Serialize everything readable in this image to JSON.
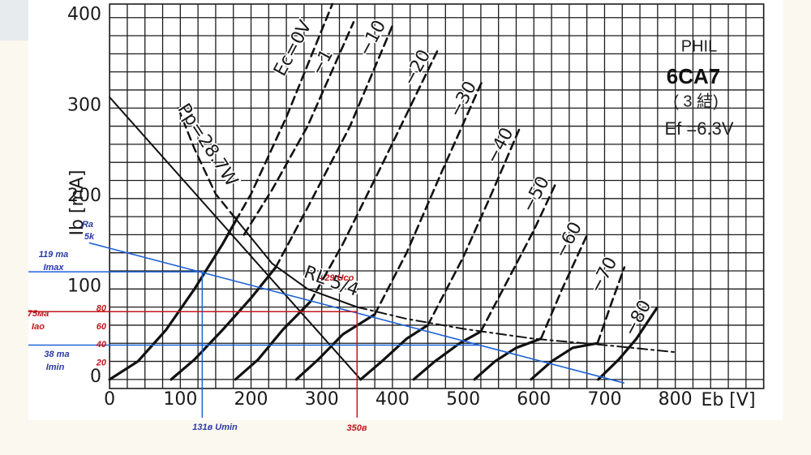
{
  "chart_data": {
    "type": "line",
    "xlabel": "Eb [V]",
    "ylabel": "Ib [mA]",
    "header": [
      "PHIL",
      "6CA7",
      "( 3 結)",
      "Ef =6.3V"
    ],
    "xlim": [
      -30,
      930
    ],
    "ylim": [
      -10,
      415
    ],
    "xticks": [
      0,
      100,
      200,
      300,
      400,
      500,
      600,
      700,
      800
    ],
    "yticks": [
      0,
      100,
      200,
      300,
      400
    ],
    "xminor": [
      0,
      25,
      50,
      75,
      100,
      125,
      150,
      175,
      200,
      225,
      250,
      275,
      300,
      325,
      350,
      375,
      400,
      425,
      450,
      475,
      500,
      525,
      550,
      575,
      600,
      625,
      650,
      675,
      700,
      725,
      750,
      775,
      800,
      825,
      850,
      875,
      900,
      925
    ],
    "yminor": [
      0,
      20,
      40,
      60,
      80,
      100,
      120,
      140,
      160,
      180,
      200,
      220,
      240,
      260,
      280,
      300,
      320,
      340,
      360,
      380,
      400
    ],
    "grid": true,
    "series": [
      {
        "color": "#111111",
        "style": "solid",
        "width": 3.2,
        "x": [
          0,
          40,
          80,
          120,
          160,
          178
        ],
        "values": [
          0,
          20,
          55,
          100,
          150,
          175
        ]
      },
      {
        "name": "Ec=0V",
        "color": "#111111",
        "style": "dashed",
        "width": 2.6,
        "x": [
          178,
          200,
          250,
          315
        ],
        "values": [
          175,
          205,
          290,
          415
        ]
      },
      {
        "name": "−1",
        "color": "#111111",
        "style": "dashed",
        "width": 2.6,
        "x": [
          190,
          230,
          280,
          345
        ],
        "values": [
          160,
          210,
          280,
          395
        ]
      },
      {
        "color": "#111111",
        "style": "solid",
        "width": 3.2,
        "x": [
          87,
          120,
          160,
          200,
          235
        ],
        "values": [
          0,
          22,
          55,
          90,
          124
        ]
      },
      {
        "name": "−10",
        "color": "#111111",
        "style": "dashed",
        "width": 2.6,
        "x": [
          235,
          280,
          340,
          401
        ],
        "values": [
          124,
          190,
          280,
          393
        ]
      },
      {
        "color": "#111111",
        "style": "solid",
        "width": 3.2,
        "x": [
          178,
          210,
          245,
          284
        ],
        "values": [
          0,
          22,
          55,
          86
        ]
      },
      {
        "name": "−20",
        "color": "#111111",
        "style": "dashed",
        "width": 2.6,
        "x": [
          284,
          330,
          390,
          464
        ],
        "values": [
          86,
          150,
          245,
          364
        ]
      },
      {
        "color": "#111111",
        "style": "solid",
        "width": 3.2,
        "x": [
          264,
          295,
          330,
          375
        ],
        "values": [
          0,
          22,
          50,
          72
        ]
      },
      {
        "name": "−30",
        "color": "#111111",
        "style": "dashed",
        "width": 2.6,
        "x": [
          375,
          420,
          470,
          527
        ],
        "values": [
          72,
          140,
          230,
          330
        ]
      },
      {
        "color": "#111111",
        "style": "solid",
        "width": 3.2,
        "x": [
          355,
          385,
          420,
          450
        ],
        "values": [
          0,
          20,
          45,
          60
        ]
      },
      {
        "name": "−40",
        "color": "#111111",
        "style": "dashed",
        "width": 2.6,
        "x": [
          450,
          500,
          540,
          579
        ],
        "values": [
          60,
          135,
          205,
          276
        ]
      },
      {
        "color": "#111111",
        "style": "solid",
        "width": 3.2,
        "x": [
          430,
          460,
          495,
          525
        ],
        "values": [
          0,
          20,
          40,
          53
        ]
      },
      {
        "name": "−50",
        "color": "#111111",
        "style": "dashed",
        "width": 2.6,
        "x": [
          525,
          570,
          600,
          630
        ],
        "values": [
          53,
          120,
          165,
          215
        ]
      },
      {
        "color": "#111111",
        "style": "solid",
        "width": 3.2,
        "x": [
          516,
          545,
          575,
          610
        ],
        "values": [
          0,
          20,
          35,
          45
        ]
      },
      {
        "name": "−60",
        "color": "#111111",
        "style": "dashed",
        "width": 2.6,
        "x": [
          610,
          640,
          676
        ],
        "values": [
          45,
          100,
          161
        ]
      },
      {
        "color": "#111111",
        "style": "solid",
        "width": 3.2,
        "x": [
          596,
          625,
          655,
          690
        ],
        "values": [
          0,
          20,
          35,
          40
        ]
      },
      {
        "name": "−70",
        "color": "#111111",
        "style": "dashed",
        "width": 2.6,
        "x": [
          690,
          710,
          728
        ],
        "values": [
          40,
          85,
          124
        ]
      },
      {
        "name": "−80",
        "color": "#111111",
        "style": "solid",
        "width": 3.2,
        "x": [
          691,
          720,
          745,
          774
        ],
        "values": [
          0,
          22,
          45,
          79
        ]
      },
      {
        "name": "Pp=28.7W",
        "color": "#111111",
        "style": "dashed",
        "width": 2.4,
        "x": [
          97,
          120,
          150,
          178
        ],
        "values": [
          300,
          255,
          205,
          178
        ]
      },
      {
        "color": "#111111",
        "style": "solid",
        "width": 2,
        "x": [
          0,
          355
        ],
        "values": [
          312,
          0
        ]
      },
      {
        "color": "#111111",
        "style": "solid",
        "width": 2,
        "x": [
          178,
          230,
          280,
          350
        ],
        "values": [
          178,
          128,
          100,
          80
        ]
      },
      {
        "name": "RL 5/4",
        "color": "#111111",
        "style": "dashdot",
        "width": 2,
        "x": [
          350,
          420,
          500,
          600,
          700,
          802
        ],
        "values": [
          80,
          67,
          56,
          45,
          38,
          30
        ]
      }
    ],
    "load_line": {
      "color": "#1e62d6",
      "x": [
        -29,
        728
      ],
      "values": [
        151,
        -4
      ]
    },
    "guides": [
      {
        "color": "#1e62d6",
        "y": 119,
        "x": 131
      },
      {
        "color": "#c3161c",
        "y": 75,
        "x": 350
      },
      {
        "color": "#1e62d6",
        "y": 38
      }
    ],
    "red_ticks": {
      "color": "#c3161c",
      "values": [
        80,
        60,
        40,
        20
      ]
    },
    "annotations": [
      {
        "text": "Ra",
        "color": "#2b3aa8"
      },
      {
        "text": "5k",
        "color": "#2b3aa8"
      },
      {
        "text": "119 ma",
        "color": "#2b3aa8"
      },
      {
        "text": "Imax",
        "color": "#2b3aa8"
      },
      {
        "text": "75ма",
        "color": "#c3161c"
      },
      {
        "text": "Iao",
        "color": "#c3161c"
      },
      {
        "text": "38 ma",
        "color": "#2b3aa8"
      },
      {
        "text": "Imin",
        "color": "#2b3aa8"
      },
      {
        "text": "131в Umin",
        "color": "#2b3aa8"
      },
      {
        "text": "350в",
        "color": "#c3161c"
      },
      {
        "text": "- 29 Uco",
        "color": "#c3161c"
      }
    ]
  }
}
